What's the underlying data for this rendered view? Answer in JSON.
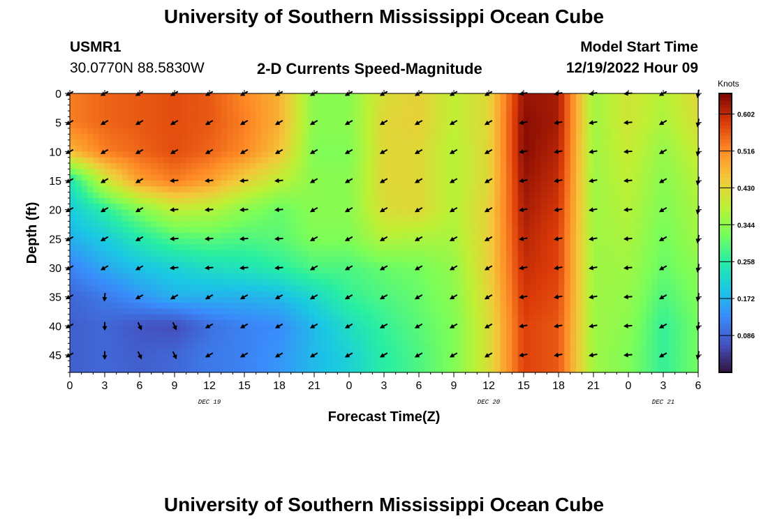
{
  "header": {
    "title": "University of Southern Mississippi Ocean Cube",
    "station_id": "USMR1",
    "coordinates": "30.0770N  88.5830W",
    "plot_title": "2-D Currents Speed-Magnitude",
    "model_label": "Model Start Time",
    "model_time": "12/19/2022 Hour 09"
  },
  "footer": {
    "title": "University of Southern Mississippi Ocean Cube"
  },
  "chart_data": {
    "type": "heatmap",
    "title": "2-D Currents Speed-Magnitude",
    "xlabel": "Forecast Time(Z)",
    "ylabel": "Depth (ft)",
    "x_hours": [
      0,
      3,
      6,
      9,
      12,
      15,
      18,
      21,
      24,
      27,
      30,
      33,
      36,
      39,
      42,
      45,
      48,
      51,
      54
    ],
    "x_tick_labels": [
      "0",
      "3",
      "6",
      "9",
      "12",
      "15",
      "18",
      "21",
      "0",
      "3",
      "6",
      "9",
      "12",
      "15",
      "18",
      "21",
      "0",
      "3",
      "6"
    ],
    "date_labels": [
      {
        "hour": 12,
        "label": "DEC 19"
      },
      {
        "hour": 36,
        "label": "DEC 20"
      },
      {
        "hour": 51,
        "label": "DEC 21"
      }
    ],
    "xlim": [
      0,
      54
    ],
    "ylim": [
      0,
      48
    ],
    "y_reversed": true,
    "y_ticks": [
      0,
      5,
      10,
      15,
      20,
      25,
      30,
      35,
      40,
      45
    ],
    "colorbar": {
      "label": "Knots",
      "range": [
        0.0,
        0.65
      ],
      "ticks": [
        0.602,
        0.516,
        0.43,
        0.344,
        0.258,
        0.172,
        0.086
      ],
      "tick_labels": [
        "0.602",
        "0.516",
        "0.430",
        "0.344",
        "0.258",
        "0.172",
        "0.086"
      ]
    },
    "depths": [
      0,
      5,
      10,
      15,
      20,
      25,
      30,
      35,
      40,
      45
    ],
    "speed_knots": [
      [
        0.53,
        0.55,
        0.56,
        0.57,
        0.56,
        0.52,
        0.48,
        0.34,
        0.34,
        0.42,
        0.44,
        0.39,
        0.43,
        0.63,
        0.62,
        0.36,
        0.41,
        0.38,
        0.43
      ],
      [
        0.53,
        0.55,
        0.56,
        0.57,
        0.56,
        0.53,
        0.48,
        0.34,
        0.34,
        0.43,
        0.44,
        0.39,
        0.43,
        0.64,
        0.62,
        0.36,
        0.41,
        0.37,
        0.42
      ],
      [
        0.47,
        0.53,
        0.55,
        0.57,
        0.55,
        0.52,
        0.46,
        0.33,
        0.33,
        0.43,
        0.43,
        0.38,
        0.43,
        0.64,
        0.61,
        0.36,
        0.4,
        0.35,
        0.4
      ],
      [
        0.24,
        0.4,
        0.5,
        0.53,
        0.5,
        0.44,
        0.39,
        0.34,
        0.34,
        0.43,
        0.43,
        0.38,
        0.43,
        0.63,
        0.6,
        0.36,
        0.39,
        0.34,
        0.38
      ],
      [
        0.2,
        0.26,
        0.33,
        0.39,
        0.38,
        0.34,
        0.31,
        0.34,
        0.34,
        0.42,
        0.43,
        0.38,
        0.44,
        0.62,
        0.59,
        0.36,
        0.38,
        0.33,
        0.37
      ],
      [
        0.17,
        0.2,
        0.25,
        0.29,
        0.3,
        0.29,
        0.3,
        0.33,
        0.33,
        0.38,
        0.37,
        0.37,
        0.44,
        0.61,
        0.58,
        0.36,
        0.37,
        0.32,
        0.36
      ],
      [
        0.12,
        0.16,
        0.19,
        0.21,
        0.23,
        0.24,
        0.26,
        0.29,
        0.29,
        0.31,
        0.32,
        0.35,
        0.44,
        0.6,
        0.58,
        0.36,
        0.36,
        0.31,
        0.34
      ],
      [
        0.09,
        0.11,
        0.14,
        0.17,
        0.17,
        0.17,
        0.18,
        0.22,
        0.27,
        0.29,
        0.31,
        0.34,
        0.43,
        0.59,
        0.57,
        0.36,
        0.35,
        0.29,
        0.33
      ],
      [
        0.08,
        0.09,
        0.07,
        0.06,
        0.1,
        0.12,
        0.13,
        0.18,
        0.23,
        0.27,
        0.3,
        0.33,
        0.42,
        0.58,
        0.56,
        0.36,
        0.34,
        0.27,
        0.32
      ],
      [
        0.08,
        0.09,
        0.08,
        0.09,
        0.11,
        0.12,
        0.14,
        0.18,
        0.21,
        0.26,
        0.29,
        0.33,
        0.42,
        0.58,
        0.56,
        0.36,
        0.33,
        0.27,
        0.32
      ]
    ],
    "arrow_direction": "predominantly toward southwest (down-left); toward west in mid-column; toward south near bottom-left and right edge"
  }
}
